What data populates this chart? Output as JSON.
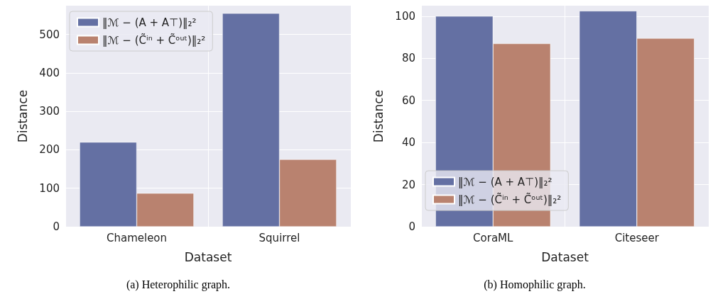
{
  "chart_data": [
    {
      "type": "bar",
      "xlabel": "Dataset",
      "ylabel": "Distance",
      "categories": [
        "Chameleon",
        "Squirrel"
      ],
      "series": [
        {
          "name": "‖ℳ − (A + A⊤)‖₂²",
          "color": "#6470a3",
          "values": [
            220,
            555
          ]
        },
        {
          "name": "‖ℳ − (C̃ⁱⁿ + C̃ᵒᵘᵗ)‖₂²",
          "color": "#b9826f",
          "values": [
            87,
            175
          ]
        }
      ],
      "ylim": [
        0,
        575
      ],
      "yticks": [
        0,
        100,
        200,
        300,
        400,
        500
      ],
      "grid": true,
      "legend": "top left",
      "annotations": [
        "(a) Heterophilic graph."
      ]
    },
    {
      "type": "bar",
      "xlabel": "Dataset",
      "ylabel": "Distance",
      "categories": [
        "CoraML",
        "Citeseer"
      ],
      "series": [
        {
          "name": "‖ℳ − (A + A⊤)‖₂²",
          "color": "#6470a3",
          "values": [
            100,
            102.5
          ]
        },
        {
          "name": "‖ℳ − (C̃ⁱⁿ + C̃ᵒᵘᵗ)‖₂²",
          "color": "#b9826f",
          "values": [
            87,
            89.5
          ]
        }
      ],
      "ylim": [
        0,
        105
      ],
      "yticks": [
        0,
        20,
        40,
        60,
        80,
        100
      ],
      "grid": true,
      "legend": "bottom left",
      "annotations": [
        "(b) Homophilic graph."
      ]
    }
  ]
}
